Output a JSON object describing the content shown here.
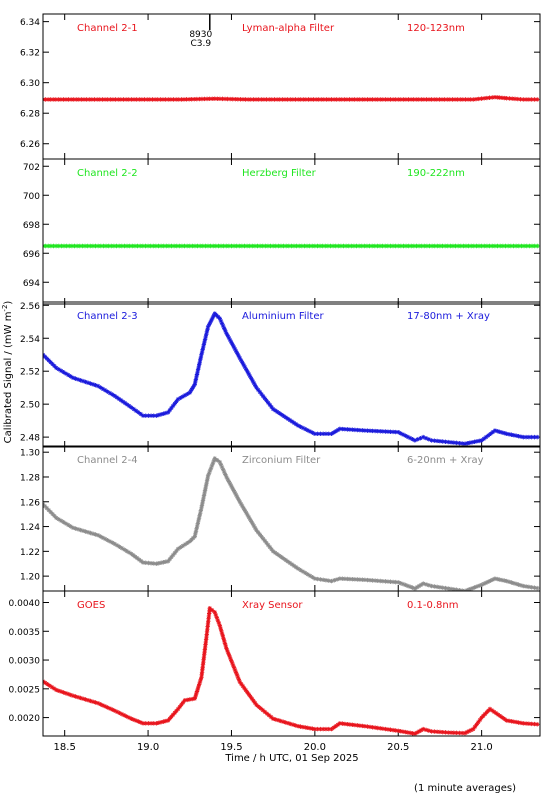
{
  "chart_data": {
    "type": "scatter",
    "xlabel": "Time / h UTC, 01 Sep 2025",
    "ylabel": "Calibrated Signal / (mW m",
    "ylabel_sup": "-2",
    "ylabel_close": ")",
    "footnote": "(1 minute averages)",
    "xlim": [
      18.37,
      21.35
    ],
    "xticks": [
      18.5,
      19.0,
      19.5,
      20.0,
      20.5,
      21.0
    ],
    "xtick_labels": [
      "18.5",
      "19.0",
      "19.5",
      "20.0",
      "20.5",
      "21.0"
    ],
    "marker_annotation": {
      "x": 19.37,
      "lines": [
        "8930",
        "C3.9"
      ]
    },
    "panels": [
      {
        "name": "Channel 2-1",
        "filter": "Lyman-alpha Filter",
        "band": "120-123nm",
        "color": "#e8141c",
        "ylim": [
          6.25,
          6.345
        ],
        "yticks": [
          6.26,
          6.28,
          6.3,
          6.32,
          6.34
        ],
        "ytick_labels": [
          "6.26",
          "6.28",
          "6.30",
          "6.32",
          "6.34"
        ],
        "points": [
          [
            18.37,
            6.289
          ],
          [
            18.6,
            6.289
          ],
          [
            18.9,
            6.289
          ],
          [
            19.2,
            6.289
          ],
          [
            19.4,
            6.2895
          ],
          [
            19.6,
            6.289
          ],
          [
            19.9,
            6.289
          ],
          [
            20.3,
            6.289
          ],
          [
            20.7,
            6.289
          ],
          [
            20.95,
            6.289
          ],
          [
            21.08,
            6.2905
          ],
          [
            21.15,
            6.2898
          ],
          [
            21.25,
            6.289
          ],
          [
            21.35,
            6.289
          ]
        ]
      },
      {
        "name": "Channel 2-2",
        "filter": "Herzberg Filter",
        "band": "190-222nm",
        "color": "#1fe61f",
        "ylim": [
          692.5,
          702.5
        ],
        "yticks": [
          694,
          696,
          698,
          700,
          702
        ],
        "ytick_labels": [
          "694",
          "696",
          "698",
          "700",
          "702"
        ],
        "points": [
          [
            18.37,
            696.5
          ],
          [
            19.0,
            696.5
          ],
          [
            19.5,
            696.5
          ],
          [
            20.0,
            696.5
          ],
          [
            20.5,
            696.5
          ],
          [
            21.0,
            696.5
          ],
          [
            21.35,
            696.5
          ]
        ]
      },
      {
        "name": "Channel 2-3",
        "filter": "Aluminium Filter",
        "band": "17-80nm + Xray",
        "color": "#1a1adc",
        "ylim": [
          2.474,
          2.562
        ],
        "yticks": [
          2.48,
          2.5,
          2.52,
          2.54,
          2.56
        ],
        "ytick_labels": [
          "2.48",
          "2.50",
          "2.52",
          "2.54",
          "2.56"
        ],
        "points": [
          [
            18.37,
            2.53
          ],
          [
            18.45,
            2.522
          ],
          [
            18.55,
            2.516
          ],
          [
            18.7,
            2.511
          ],
          [
            18.8,
            2.505
          ],
          [
            18.9,
            2.498
          ],
          [
            18.97,
            2.493
          ],
          [
            19.05,
            2.493
          ],
          [
            19.12,
            2.495
          ],
          [
            19.18,
            2.503
          ],
          [
            19.25,
            2.507
          ],
          [
            19.28,
            2.512
          ],
          [
            19.32,
            2.53
          ],
          [
            19.36,
            2.547
          ],
          [
            19.4,
            2.555
          ],
          [
            19.43,
            2.552
          ],
          [
            19.47,
            2.543
          ],
          [
            19.55,
            2.528
          ],
          [
            19.65,
            2.51
          ],
          [
            19.75,
            2.497
          ],
          [
            19.9,
            2.487
          ],
          [
            20.0,
            2.482
          ],
          [
            20.1,
            2.482
          ],
          [
            20.15,
            2.485
          ],
          [
            20.3,
            2.484
          ],
          [
            20.5,
            2.483
          ],
          [
            20.6,
            2.478
          ],
          [
            20.65,
            2.48
          ],
          [
            20.7,
            2.478
          ],
          [
            20.8,
            2.477
          ],
          [
            20.9,
            2.476
          ],
          [
            21.0,
            2.478
          ],
          [
            21.08,
            2.484
          ],
          [
            21.15,
            2.482
          ],
          [
            21.25,
            2.48
          ],
          [
            21.35,
            2.48
          ]
        ]
      },
      {
        "name": "Channel 2-4",
        "filter": "Zirconium Filter",
        "band": "6-20nm + Xray",
        "color": "#8c8c8c",
        "ylim": [
          1.188,
          1.305
        ],
        "yticks": [
          1.2,
          1.22,
          1.24,
          1.26,
          1.28,
          1.3
        ],
        "ytick_labels": [
          "1.20",
          "1.22",
          "1.24",
          "1.26",
          "1.28",
          "1.30"
        ],
        "points": [
          [
            18.37,
            1.258
          ],
          [
            18.45,
            1.247
          ],
          [
            18.55,
            1.239
          ],
          [
            18.7,
            1.233
          ],
          [
            18.8,
            1.226
          ],
          [
            18.9,
            1.218
          ],
          [
            18.97,
            1.211
          ],
          [
            19.05,
            1.21
          ],
          [
            19.12,
            1.212
          ],
          [
            19.18,
            1.222
          ],
          [
            19.25,
            1.228
          ],
          [
            19.28,
            1.232
          ],
          [
            19.32,
            1.255
          ],
          [
            19.36,
            1.281
          ],
          [
            19.4,
            1.295
          ],
          [
            19.43,
            1.292
          ],
          [
            19.47,
            1.28
          ],
          [
            19.55,
            1.26
          ],
          [
            19.65,
            1.237
          ],
          [
            19.75,
            1.22
          ],
          [
            19.9,
            1.206
          ],
          [
            20.0,
            1.198
          ],
          [
            20.1,
            1.196
          ],
          [
            20.15,
            1.198
          ],
          [
            20.3,
            1.197
          ],
          [
            20.5,
            1.195
          ],
          [
            20.6,
            1.19
          ],
          [
            20.65,
            1.194
          ],
          [
            20.7,
            1.192
          ],
          [
            20.8,
            1.19
          ],
          [
            20.9,
            1.188
          ],
          [
            21.0,
            1.193
          ],
          [
            21.08,
            1.198
          ],
          [
            21.15,
            1.196
          ],
          [
            21.25,
            1.192
          ],
          [
            21.35,
            1.19
          ]
        ]
      },
      {
        "name": "GOES",
        "filter": "Xray Sensor",
        "band": "0.1-0.8nm",
        "color": "#e8141c",
        "ylim": [
          0.00168,
          0.0042
        ],
        "yticks": [
          0.002,
          0.0025,
          0.003,
          0.0035,
          0.004
        ],
        "ytick_labels": [
          "0.0020",
          "0.0025",
          "0.0030",
          "0.0035",
          "0.0040"
        ],
        "points": [
          [
            18.37,
            0.00263
          ],
          [
            18.45,
            0.00248
          ],
          [
            18.55,
            0.00238
          ],
          [
            18.7,
            0.00225
          ],
          [
            18.8,
            0.00212
          ],
          [
            18.9,
            0.00198
          ],
          [
            18.97,
            0.0019
          ],
          [
            19.05,
            0.0019
          ],
          [
            19.12,
            0.00195
          ],
          [
            19.18,
            0.00215
          ],
          [
            19.22,
            0.0023
          ],
          [
            19.28,
            0.00233
          ],
          [
            19.32,
            0.0027
          ],
          [
            19.35,
            0.0034
          ],
          [
            19.37,
            0.0039
          ],
          [
            19.4,
            0.00383
          ],
          [
            19.43,
            0.0036
          ],
          [
            19.47,
            0.0032
          ],
          [
            19.55,
            0.00262
          ],
          [
            19.65,
            0.00222
          ],
          [
            19.75,
            0.00198
          ],
          [
            19.9,
            0.00185
          ],
          [
            20.0,
            0.0018
          ],
          [
            20.1,
            0.0018
          ],
          [
            20.15,
            0.0019
          ],
          [
            20.3,
            0.00185
          ],
          [
            20.5,
            0.00177
          ],
          [
            20.6,
            0.00172
          ],
          [
            20.65,
            0.0018
          ],
          [
            20.7,
            0.00176
          ],
          [
            20.8,
            0.00174
          ],
          [
            20.9,
            0.00173
          ],
          [
            20.95,
            0.0018
          ],
          [
            21.0,
            0.002
          ],
          [
            21.05,
            0.00215
          ],
          [
            21.1,
            0.00205
          ],
          [
            21.15,
            0.00195
          ],
          [
            21.25,
            0.0019
          ],
          [
            21.35,
            0.00188
          ]
        ]
      }
    ]
  }
}
